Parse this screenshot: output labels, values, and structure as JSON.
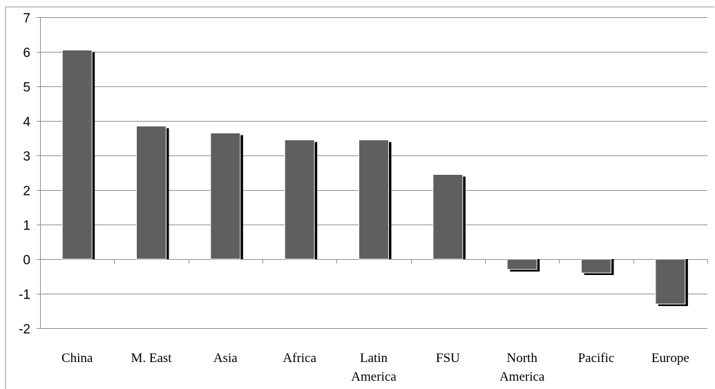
{
  "chart_data": {
    "type": "bar",
    "categories": [
      "China",
      "M. East",
      "Asia",
      "Africa",
      "Latin America",
      "FSU",
      "North America",
      "Pacific",
      "Europe"
    ],
    "category_label_lines": [
      [
        "China"
      ],
      [
        "M. East"
      ],
      [
        "Asia"
      ],
      [
        "Africa"
      ],
      [
        "Latin",
        "America"
      ],
      [
        "FSU"
      ],
      [
        "North",
        "America"
      ],
      [
        "Pacific"
      ],
      [
        "Europe"
      ]
    ],
    "values": [
      6.05,
      3.85,
      3.65,
      3.45,
      3.45,
      2.45,
      -0.3,
      -0.4,
      -1.3
    ],
    "y_ticks": [
      -2,
      -1,
      0,
      1,
      2,
      3,
      4,
      5,
      6,
      7
    ],
    "ylim": [
      -2,
      7
    ],
    "grid": true,
    "legend": "none",
    "title": "",
    "xlabel": "",
    "ylabel": "",
    "colors": {
      "bar": "#5f5f5f",
      "shadow": "#000000",
      "grid": "#8c8c8c"
    }
  }
}
